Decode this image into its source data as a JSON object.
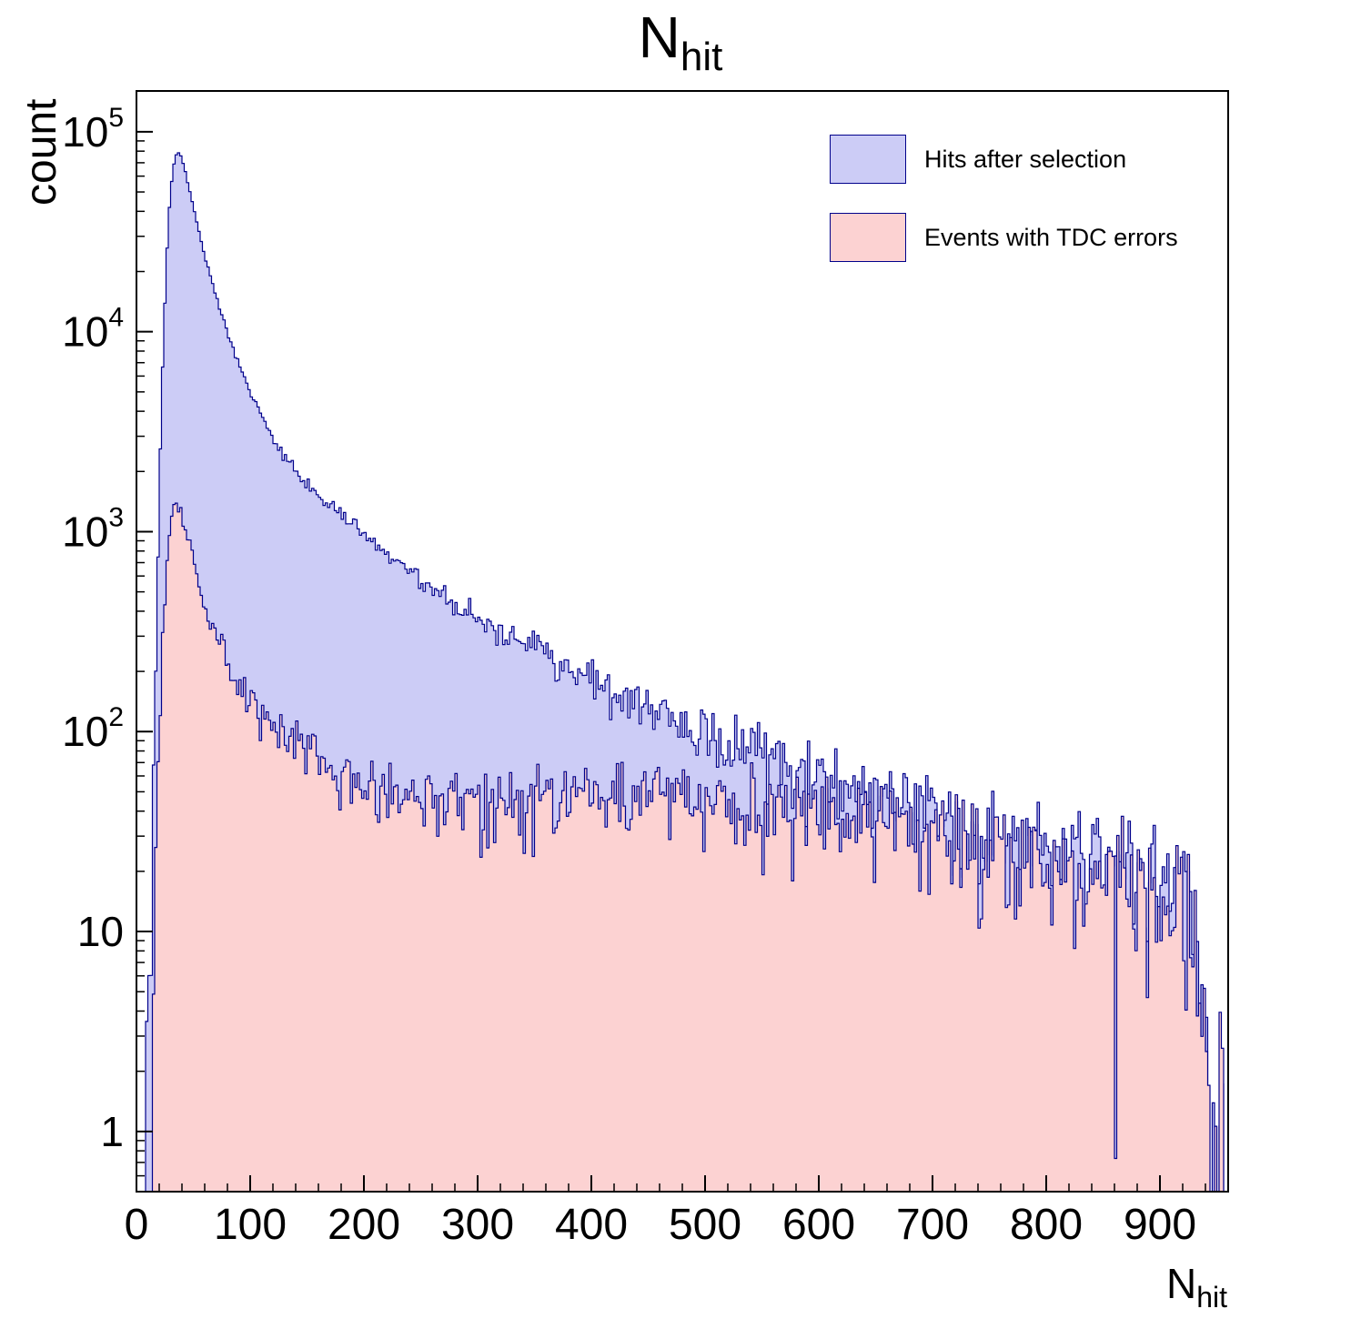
{
  "chart_data": {
    "type": "bar",
    "subtype": "step-histogram-log-y",
    "title_main": "N",
    "title_sub": "hit",
    "ylabel": "count",
    "xlabel_main": "N",
    "xlabel_sub": "hit",
    "x_range": [
      0,
      960
    ],
    "y_range_log": [
      0.5,
      160000
    ],
    "x_ticks": [
      0,
      100,
      200,
      300,
      400,
      500,
      600,
      700,
      800,
      900
    ],
    "x_minor_step": 20,
    "y_ticks": [
      {
        "v": 1,
        "m": "1",
        "e": ""
      },
      {
        "v": 10,
        "m": "10",
        "e": ""
      },
      {
        "v": 100,
        "m": "10",
        "e": "2"
      },
      {
        "v": 1000,
        "m": "10",
        "e": "3"
      },
      {
        "v": 10000,
        "m": "10",
        "e": "4"
      },
      {
        "v": 100000,
        "m": "10",
        "e": "5"
      }
    ],
    "bin_width": 2,
    "grid": false,
    "legend_position": "top-right",
    "axis_color": "#000000",
    "series": [
      {
        "name": "Hits after selection",
        "fill": "#ccccf6",
        "line": "#00008b",
        "noise_seed": 7,
        "anchors": [
          [
            8,
            0.6
          ],
          [
            12,
            6
          ],
          [
            16,
            120
          ],
          [
            20,
            1600
          ],
          [
            24,
            10000
          ],
          [
            28,
            36000
          ],
          [
            32,
            66000
          ],
          [
            36,
            80000
          ],
          [
            40,
            74000
          ],
          [
            45,
            56000
          ],
          [
            50,
            42000
          ],
          [
            60,
            24000
          ],
          [
            70,
            15000
          ],
          [
            80,
            10000
          ],
          [
            90,
            6900
          ],
          [
            100,
            5000
          ],
          [
            120,
            2900
          ],
          [
            140,
            2000
          ],
          [
            160,
            1500
          ],
          [
            180,
            1180
          ],
          [
            200,
            980
          ],
          [
            225,
            740
          ],
          [
            250,
            570
          ],
          [
            275,
            455
          ],
          [
            300,
            375
          ],
          [
            325,
            305
          ],
          [
            350,
            255
          ],
          [
            375,
            212
          ],
          [
            400,
            178
          ],
          [
            425,
            152
          ],
          [
            450,
            130
          ],
          [
            475,
            113
          ],
          [
            500,
            99
          ],
          [
            525,
            87
          ],
          [
            550,
            77
          ],
          [
            575,
            69
          ],
          [
            600,
            62
          ],
          [
            625,
            55
          ],
          [
            650,
            50
          ],
          [
            675,
            45
          ],
          [
            700,
            41
          ],
          [
            725,
            37
          ],
          [
            750,
            33
          ],
          [
            775,
            30
          ],
          [
            800,
            28
          ],
          [
            825,
            25
          ],
          [
            850,
            23
          ],
          [
            875,
            21
          ],
          [
            900,
            19
          ],
          [
            915,
            17
          ],
          [
            925,
            14
          ],
          [
            930,
            8
          ],
          [
            936,
            2.5
          ],
          [
            944,
            1.2
          ],
          [
            950,
            0.8
          ],
          [
            956,
            1.5
          ]
        ]
      },
      {
        "name": "Events with TDC errors",
        "fill": "#fcd2d2",
        "line": "#00008b",
        "noise_seed": 23,
        "anchors": [
          [
            10,
            0.6
          ],
          [
            14,
            4
          ],
          [
            18,
            45
          ],
          [
            22,
            230
          ],
          [
            26,
            620
          ],
          [
            30,
            1150
          ],
          [
            35,
            1400
          ],
          [
            40,
            1230
          ],
          [
            45,
            930
          ],
          [
            50,
            700
          ],
          [
            60,
            430
          ],
          [
            70,
            300
          ],
          [
            80,
            220
          ],
          [
            90,
            175
          ],
          [
            100,
            148
          ],
          [
            120,
            106
          ],
          [
            140,
            84
          ],
          [
            160,
            70
          ],
          [
            180,
            61
          ],
          [
            200,
            55
          ],
          [
            250,
            48
          ],
          [
            300,
            46
          ],
          [
            350,
            47
          ],
          [
            400,
            48
          ],
          [
            450,
            48
          ],
          [
            500,
            46
          ],
          [
            550,
            43
          ],
          [
            600,
            39
          ],
          [
            650,
            34
          ],
          [
            700,
            30
          ],
          [
            750,
            27
          ],
          [
            800,
            24
          ],
          [
            850,
            21
          ],
          [
            875,
            19
          ],
          [
            900,
            17
          ],
          [
            915,
            15
          ],
          [
            925,
            12
          ],
          [
            930,
            7
          ],
          [
            936,
            2.5
          ],
          [
            944,
            1.2
          ],
          [
            950,
            0.8
          ],
          [
            956,
            1.5
          ]
        ]
      }
    ]
  }
}
